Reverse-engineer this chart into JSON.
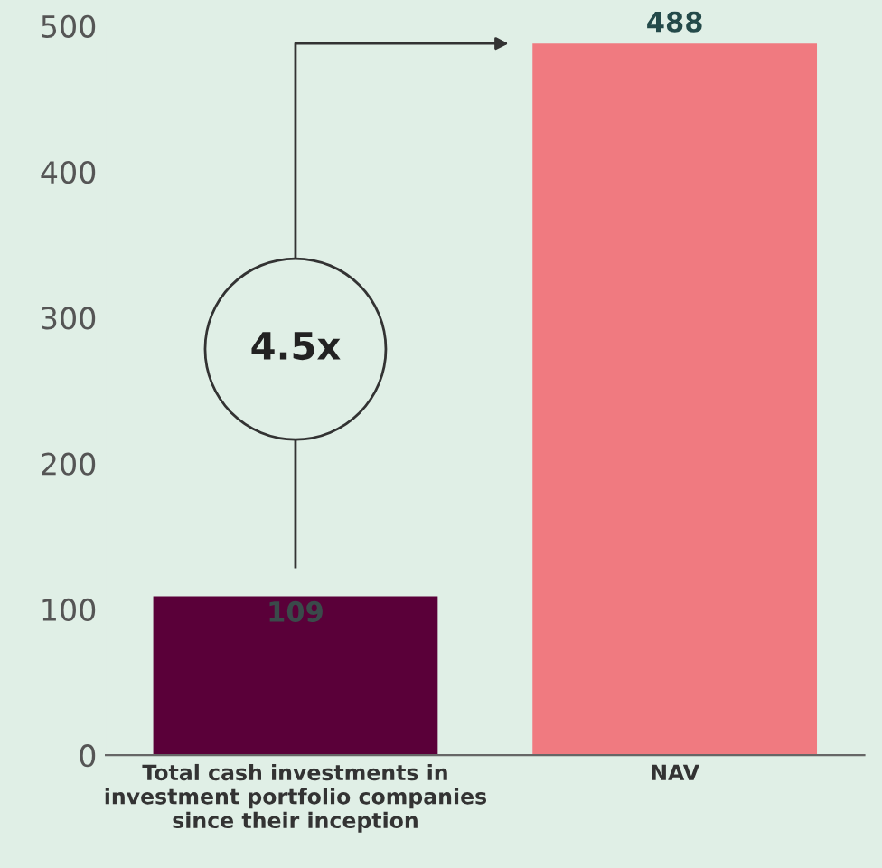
{
  "chart_data": {
    "type": "bar",
    "categories": [
      "Total cash investments in\ninvestment portfolio companies\nsince their inception",
      "NAV"
    ],
    "values": [
      109,
      488
    ],
    "colors": [
      "#5a0039",
      "#f07a80"
    ],
    "ylim": [
      0,
      500
    ],
    "yticks": [
      0,
      100,
      200,
      300,
      400,
      500
    ],
    "data_labels": true,
    "grid": false,
    "annotations": [
      "4.5x"
    ]
  }
}
